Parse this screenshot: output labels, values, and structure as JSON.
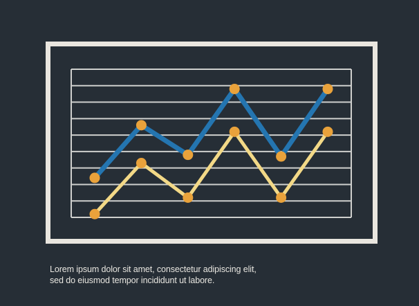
{
  "colors": {
    "background": "#262e36",
    "board_frame": "#e9e6df",
    "grid_lines": "#cfd0ce",
    "series_blue": "#2475b0",
    "series_yellow": "#f3d987",
    "markers": "#e9a23b",
    "caption_text": "#e8e6e0"
  },
  "chart_data": {
    "type": "line",
    "title": "",
    "xlabel": "",
    "ylabel": "",
    "x": [
      1,
      2,
      3,
      4,
      5,
      6
    ],
    "ylim": [
      0,
      9
    ],
    "grid": true,
    "legend": "none",
    "series": [
      {
        "color": "#2475b0",
        "values": [
          2.4,
          5.6,
          3.8,
          7.8,
          3.7,
          7.8
        ]
      },
      {
        "color": "#f3d987",
        "values": [
          0.2,
          3.3,
          1.2,
          5.2,
          1.2,
          5.2
        ]
      }
    ]
  },
  "caption": {
    "line1": "Lorem ipsum dolor sit amet, consectetur adipiscing elit,",
    "line2": "sed do eiusmod tempor incididunt ut labore."
  }
}
